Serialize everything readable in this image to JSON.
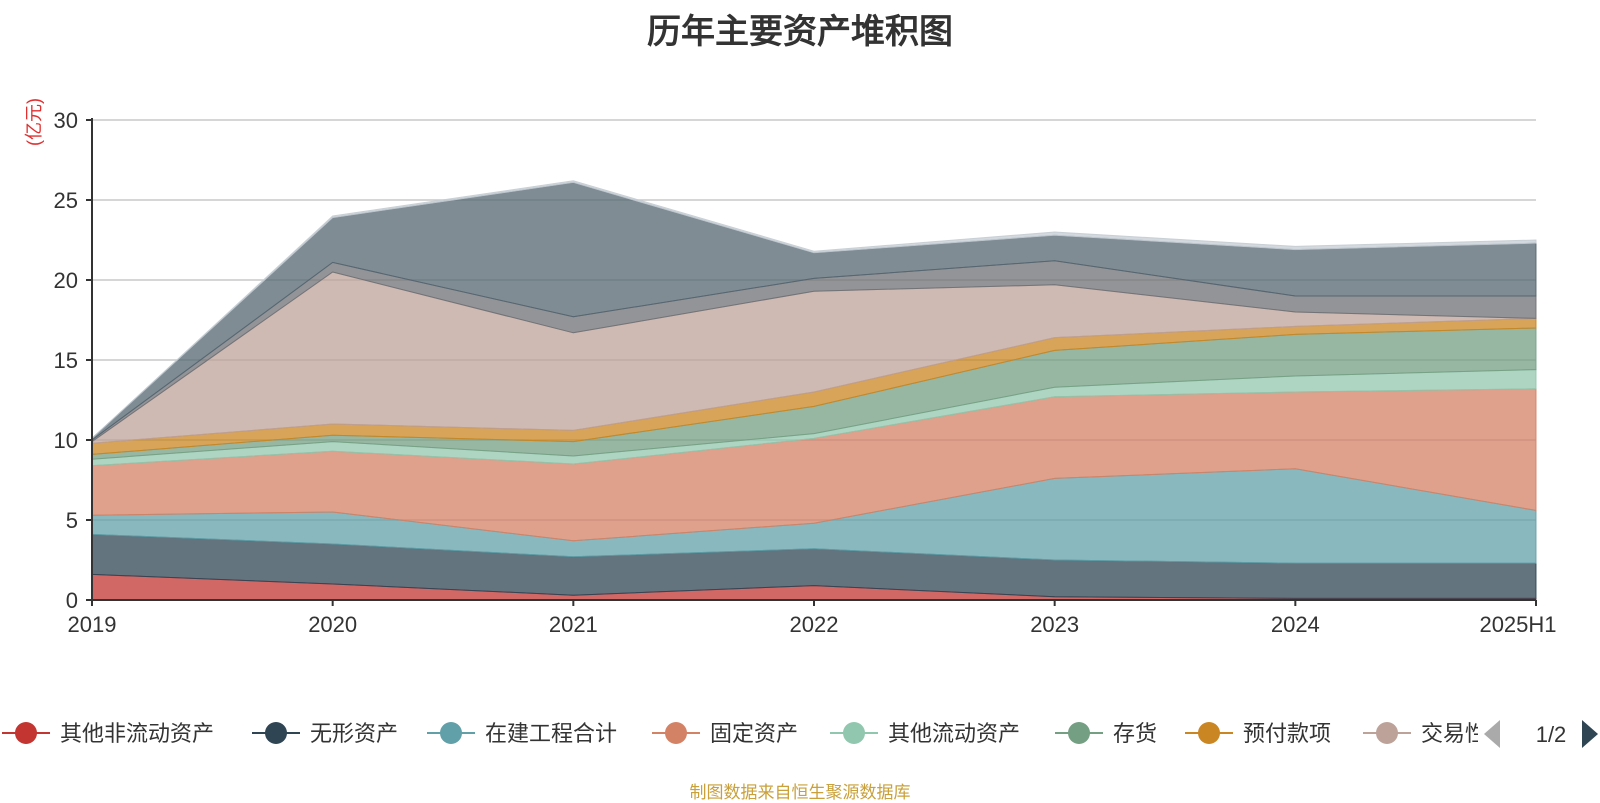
{
  "chart_data": {
    "type": "area",
    "stacked": true,
    "title": "历年主要资产堆积图",
    "ylabel": "(亿元)",
    "ylim": [
      0,
      30
    ],
    "yticks": [
      0,
      5,
      10,
      15,
      20,
      25,
      30
    ],
    "grid": true,
    "categories": [
      "2019",
      "2020",
      "2021",
      "2022",
      "2023",
      "2024",
      "2025H1"
    ],
    "series": [
      {
        "name": "其他非流动资产",
        "color": "#c23531",
        "values": [
          1.6,
          1.0,
          0.3,
          0.9,
          0.2,
          0.1,
          0.1
        ]
      },
      {
        "name": "无形资产",
        "color": "#2f4554",
        "values": [
          2.5,
          2.5,
          2.4,
          2.3,
          2.3,
          2.2,
          2.2
        ]
      },
      {
        "name": "在建工程合计",
        "color": "#61a0a8",
        "values": [
          1.2,
          2.0,
          1.0,
          1.6,
          5.1,
          5.9,
          3.3
        ]
      },
      {
        "name": "固定资产",
        "color": "#d48265",
        "values": [
          3.1,
          3.8,
          4.8,
          5.3,
          5.1,
          4.8,
          7.6
        ]
      },
      {
        "name": "其他流动资产",
        "color": "#91c7ae",
        "values": [
          0.4,
          0.6,
          0.5,
          0.3,
          0.6,
          1.0,
          1.2
        ]
      },
      {
        "name": "存货",
        "color": "#749f83",
        "values": [
          0.3,
          0.4,
          0.9,
          1.7,
          2.3,
          2.6,
          2.6
        ]
      },
      {
        "name": "预付款项",
        "color": "#ca8622",
        "values": [
          0.7,
          0.7,
          0.7,
          0.9,
          0.8,
          0.5,
          0.6
        ]
      },
      {
        "name": "交易性金融资产",
        "color": "#bda29a",
        "values": [
          0.1,
          9.5,
          6.1,
          6.3,
          3.3,
          0.9,
          0.0
        ]
      },
      {
        "name": "",
        "color": "#6e7074",
        "values": [
          0.1,
          0.6,
          1.0,
          0.8,
          1.5,
          1.0,
          1.4
        ]
      },
      {
        "name": "",
        "color": "#546570",
        "values": [
          0.1,
          2.8,
          8.4,
          1.6,
          1.6,
          2.9,
          3.3
        ]
      },
      {
        "name": "",
        "color": "#c4ccd3",
        "values": [
          0.0,
          0.1,
          0.1,
          0.1,
          0.2,
          0.2,
          0.2
        ]
      }
    ],
    "legend": {
      "placement": "bottom",
      "visible": [
        "其他非流动资产",
        "无形资产",
        "在建工程合计",
        "固定资产",
        "其他流动资产",
        "存货",
        "预付款项",
        "交易性"
      ],
      "page": "1/2"
    },
    "source": "制图数据来自恒生聚源数据库"
  }
}
